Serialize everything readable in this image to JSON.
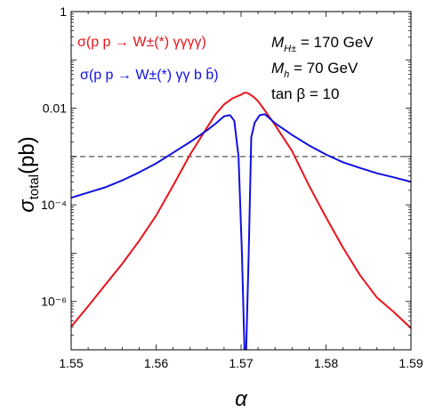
{
  "chart_data": {
    "type": "line",
    "xlabel": "α",
    "ylabel": {
      "base": "σ",
      "sub": "total",
      "suffix": "(pb)"
    },
    "x_scale": "linear",
    "y_scale": "log",
    "xlim": [
      1.55,
      1.59
    ],
    "ylim": [
      1e-07,
      1
    ],
    "x_ticks": [
      "1.55",
      "1.56",
      "1.57",
      "1.58",
      "1.59"
    ],
    "y_ticks": [
      "10⁻⁶",
      "10⁻⁴",
      "0.01",
      "1"
    ],
    "grid": false,
    "legend_position": "top-left",
    "reference_line": {
      "y": 0.001,
      "style": "dashed"
    },
    "series": [
      {
        "name": "σ(p p → W±(*) γγγγ)",
        "color": "#e8141a",
        "x": [
          1.55,
          1.552,
          1.554,
          1.556,
          1.558,
          1.56,
          1.562,
          1.564,
          1.566,
          1.567,
          1.568,
          1.569,
          1.5695,
          1.57,
          1.5703,
          1.5705,
          1.5708,
          1.571,
          1.5715,
          1.572,
          1.573,
          1.574,
          1.576,
          1.578,
          1.58,
          1.582,
          1.584,
          1.586,
          1.588,
          1.59
        ],
        "y": [
          3e-07,
          8e-07,
          2.2e-06,
          6e-06,
          1.8e-05,
          6e-05,
          0.00025,
          0.0011,
          0.004,
          0.0075,
          0.012,
          0.016,
          0.0175,
          0.019,
          0.0205,
          0.021,
          0.0205,
          0.0195,
          0.017,
          0.014,
          0.008,
          0.0045,
          0.0013,
          0.00025,
          5.5e-05,
          1.3e-05,
          3.5e-06,
          1.2e-06,
          6e-07,
          2.8e-07
        ]
      },
      {
        "name": "σ(p p → W±(*) γγ b b̄)",
        "color": "#1010e0",
        "x": [
          1.55,
          1.552,
          1.554,
          1.556,
          1.558,
          1.56,
          1.562,
          1.564,
          1.566,
          1.567,
          1.568,
          1.5687,
          1.5692,
          1.5697,
          1.5701,
          1.5704,
          1.5706,
          1.5709,
          1.5712,
          1.5716,
          1.5722,
          1.5728,
          1.573,
          1.574,
          1.576,
          1.578,
          1.58,
          1.582,
          1.584,
          1.586,
          1.588,
          1.59
        ],
        "y": [
          0.00014,
          0.00018,
          0.00023,
          0.00032,
          0.00047,
          0.00072,
          0.0012,
          0.002,
          0.0035,
          0.0048,
          0.0068,
          0.0072,
          0.0055,
          0.001,
          1e-05,
          1e-07,
          1e-07,
          1e-05,
          0.0025,
          0.005,
          0.0072,
          0.0075,
          0.007,
          0.0049,
          0.0028,
          0.0017,
          0.0011,
          0.00076,
          0.00058,
          0.00045,
          0.00037,
          0.0003
        ]
      }
    ],
    "annotations": [
      {
        "base": "M",
        "sub": "H±",
        "value": " = 170 GeV"
      },
      {
        "base": "M",
        "sub": "h",
        "value": " = 70 GeV"
      },
      {
        "text": "tan β = 10"
      }
    ]
  }
}
